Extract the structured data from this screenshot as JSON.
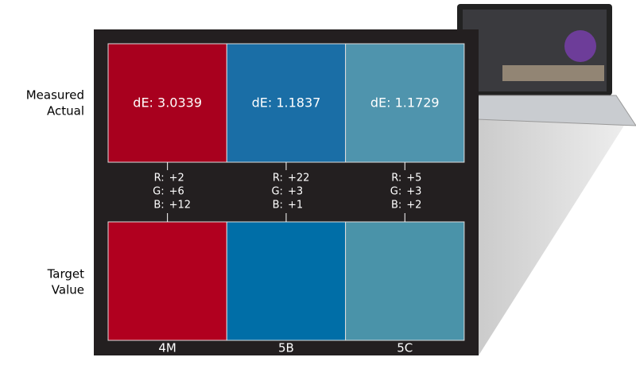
{
  "row_labels": {
    "measured": [
      "Measured",
      "Actual"
    ],
    "target": [
      "Target",
      "Value"
    ]
  },
  "channel_labels": [
    "R:",
    "G:",
    "B:"
  ],
  "columns": [
    {
      "name": "4M",
      "de": "dE: 3.0339",
      "deltas": [
        "+2",
        "+6",
        "+12"
      ],
      "measured_color": "#a8001e",
      "target_color": "#b1001f"
    },
    {
      "name": "5B",
      "de": "dE: 1.1837",
      "deltas": [
        "+22",
        "+3",
        "+1"
      ],
      "measured_color": "#1a6ea6",
      "target_color": "#006ea7"
    },
    {
      "name": "5C",
      "de": "dE: 1.1729",
      "deltas": [
        "+5",
        "+3",
        "+2"
      ],
      "measured_color": "#4f94ad",
      "target_color": "#4a93a9"
    }
  ]
}
